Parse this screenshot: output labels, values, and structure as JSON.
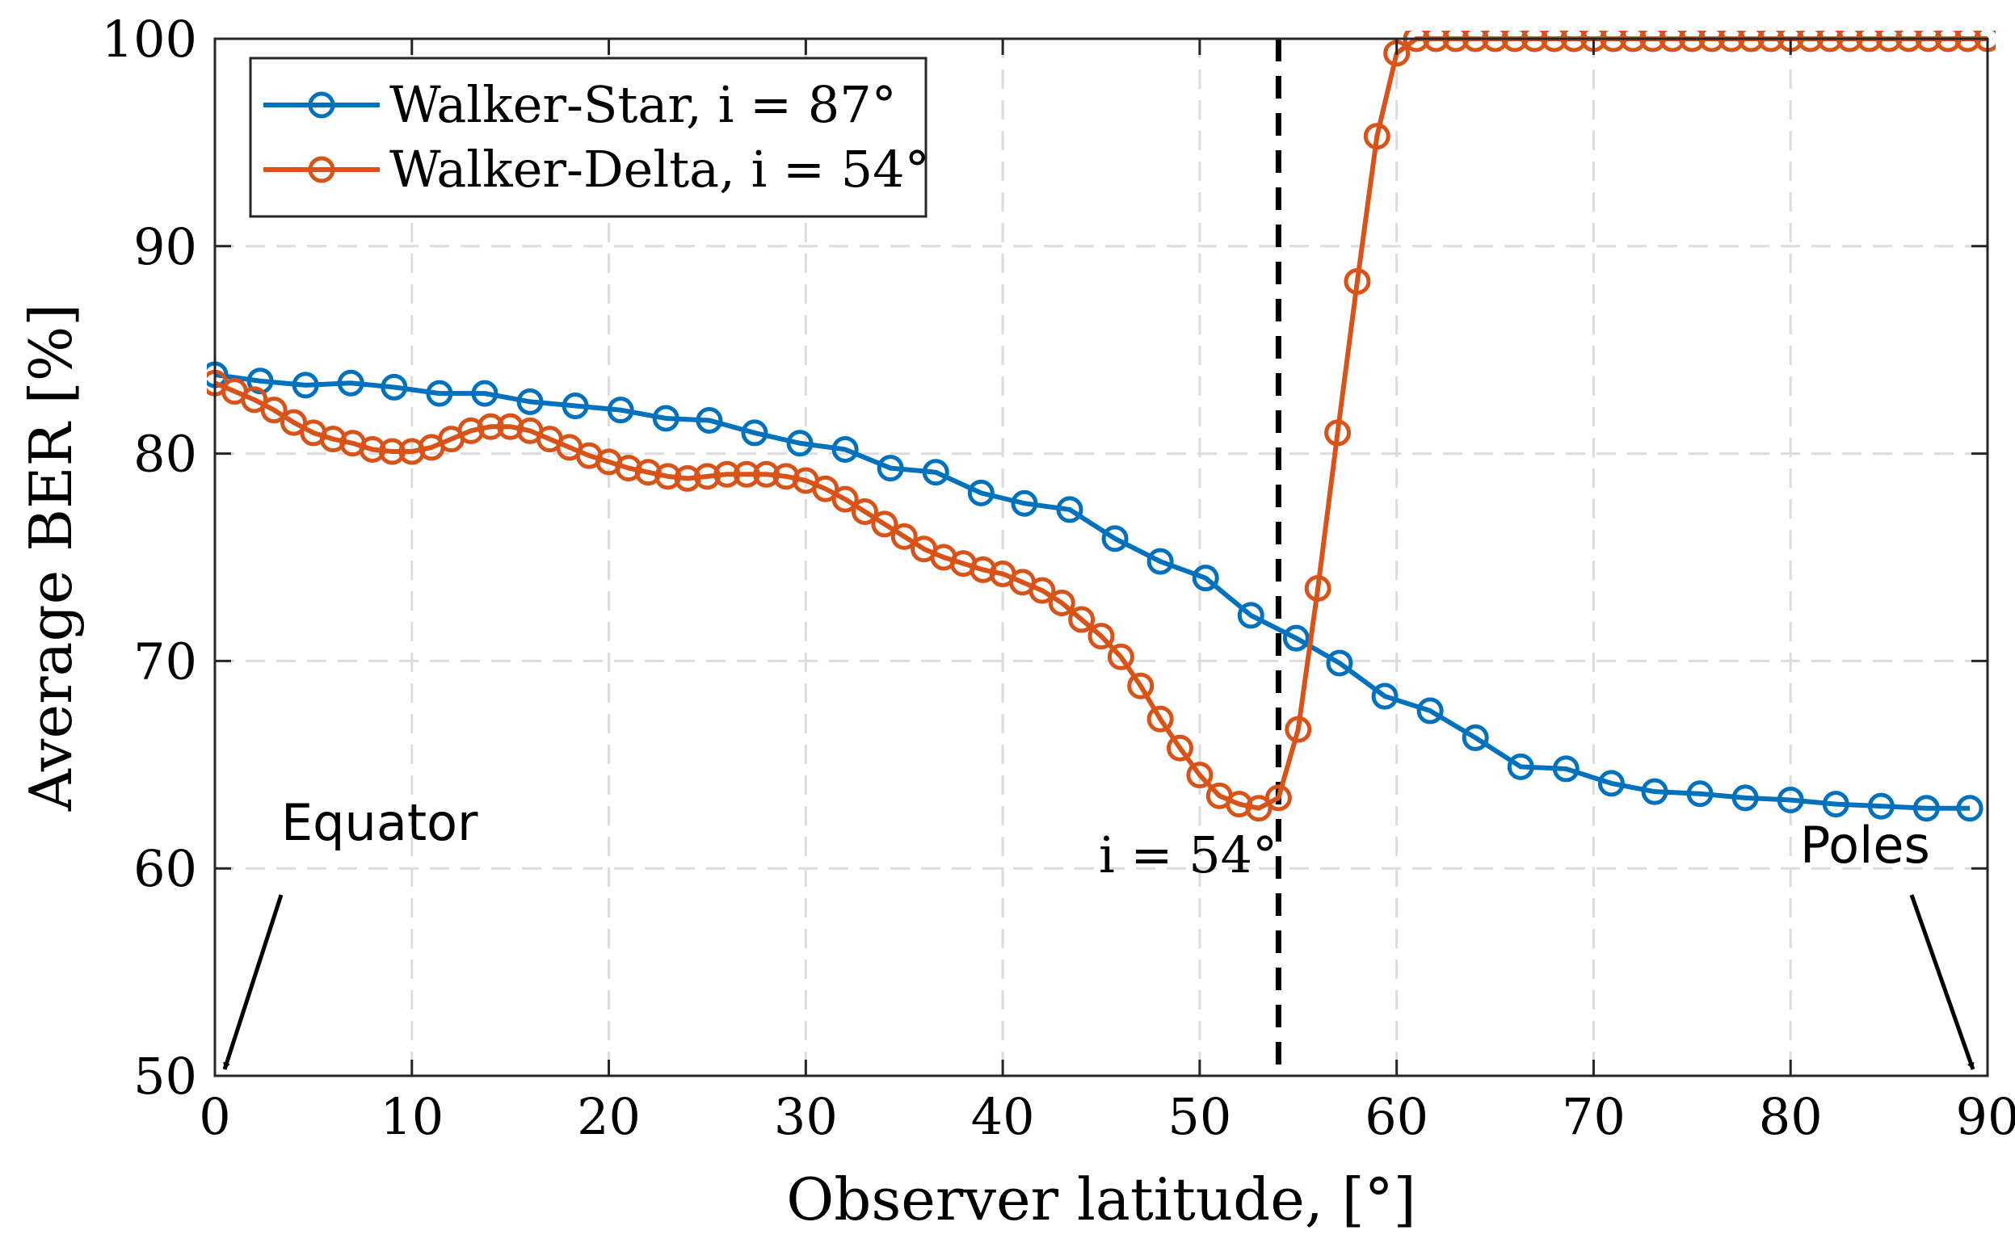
{
  "chart_data": {
    "type": "line",
    "title": "",
    "xlabel": "Observer latitude, [°]",
    "ylabel": "Average BER [%]",
    "xlim": [
      0,
      90
    ],
    "ylim": [
      50,
      100
    ],
    "xticks": [
      0,
      10,
      20,
      30,
      40,
      50,
      60,
      70,
      80,
      90
    ],
    "yticks": [
      50,
      60,
      70,
      80,
      90,
      100
    ],
    "grid": true,
    "legend_position": "top-left",
    "series": [
      {
        "name": "Walker-Star, i = 87°",
        "color": "#0072BD",
        "x": [
          0,
          2.3,
          4.6,
          6.9,
          9.1,
          11.4,
          13.7,
          16.0,
          18.3,
          20.6,
          22.9,
          25.1,
          27.4,
          29.7,
          32.0,
          34.3,
          36.6,
          38.9,
          41.1,
          43.4,
          45.7,
          48.0,
          50.3,
          52.6,
          54.9,
          57.1,
          59.4,
          61.7,
          64.0,
          66.3,
          68.6,
          70.9,
          73.1,
          75.4,
          77.7,
          80.0,
          82.3,
          84.6,
          86.9,
          89.1
        ],
        "y": [
          83.8,
          83.5,
          83.3,
          83.4,
          83.2,
          82.9,
          82.9,
          82.5,
          82.3,
          82.1,
          81.7,
          81.6,
          81.0,
          80.5,
          80.2,
          79.3,
          79.1,
          78.1,
          77.6,
          77.3,
          75.9,
          74.8,
          74.0,
          72.2,
          71.1,
          69.9,
          68.3,
          67.6,
          66.3,
          64.9,
          64.8,
          64.1,
          63.7,
          63.6,
          63.4,
          63.3,
          63.1,
          63.0,
          62.9,
          62.9
        ]
      },
      {
        "name": "Walker-Delta, i = 54°",
        "color": "#D95319",
        "x": [
          0,
          1,
          2,
          3,
          4,
          5,
          6,
          7,
          8,
          9,
          10,
          11,
          12,
          13,
          14,
          15,
          16,
          17,
          18,
          19,
          20,
          21,
          22,
          23,
          24,
          25,
          26,
          27,
          28,
          29,
          30,
          31,
          32,
          33,
          34,
          35,
          36,
          37,
          38,
          39,
          40,
          41,
          42,
          43,
          44,
          45,
          46,
          47,
          48,
          49,
          50,
          51,
          52,
          53,
          54,
          55,
          56,
          57,
          58,
          59,
          60,
          61,
          62,
          63,
          64,
          65,
          66,
          67,
          68,
          69,
          70,
          71,
          72,
          73,
          74,
          75,
          76,
          77,
          78,
          79,
          80,
          81,
          82,
          83,
          84,
          85,
          86,
          87,
          88,
          89,
          90
        ],
        "y": [
          83.4,
          83.0,
          82.6,
          82.1,
          81.5,
          81.0,
          80.7,
          80.5,
          80.2,
          80.1,
          80.1,
          80.3,
          80.7,
          81.1,
          81.3,
          81.3,
          81.1,
          80.7,
          80.3,
          79.9,
          79.6,
          79.3,
          79.1,
          78.9,
          78.8,
          78.9,
          79.0,
          79.0,
          79.0,
          78.9,
          78.7,
          78.3,
          77.8,
          77.2,
          76.6,
          76.0,
          75.4,
          75.0,
          74.7,
          74.4,
          74.2,
          73.8,
          73.4,
          72.8,
          72.0,
          71.2,
          70.2,
          68.8,
          67.2,
          65.8,
          64.5,
          63.5,
          63.1,
          62.9,
          63.4,
          66.7,
          73.5,
          81.0,
          88.3,
          95.3,
          99.3,
          100,
          100,
          100,
          100,
          100,
          100,
          100,
          100,
          100,
          100,
          100,
          100,
          100,
          100,
          100,
          100,
          100,
          100,
          100,
          100,
          100,
          100,
          100,
          100,
          100,
          100,
          100,
          100,
          100,
          100
        ]
      }
    ],
    "reference_line": {
      "x": 54,
      "label": "i = 54°"
    },
    "annotations": [
      {
        "text": "Equator",
        "points_to_x": 0
      },
      {
        "text": "Poles",
        "points_to_x": 90
      }
    ]
  }
}
